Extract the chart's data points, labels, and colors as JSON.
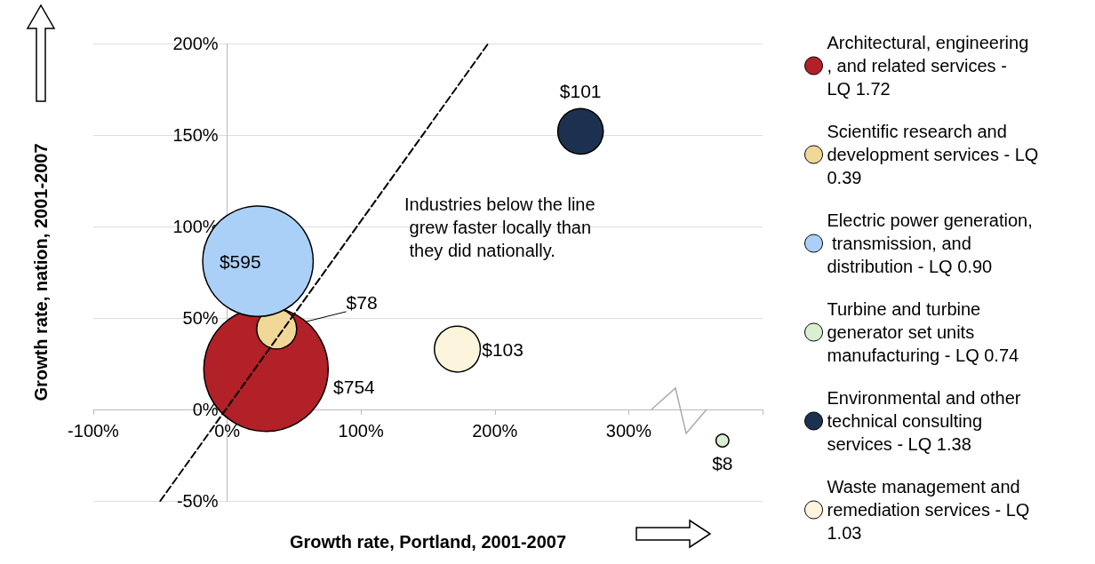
{
  "chart_data": {
    "type": "bubble",
    "xlabel": "Growth rate, Portland, 2001-2007",
    "ylabel": "Growth rate, nation, 2001-2007",
    "annotations": [
      "Industries below the line grew faster locally than they did nationally."
    ],
    "xlim": [
      -100,
      400
    ],
    "xticks": [
      {
        "value": -100,
        "label": "-100%"
      },
      {
        "value": 0,
        "label": "0%"
      },
      {
        "value": 100,
        "label": "100%"
      },
      {
        "value": 200,
        "label": "200%"
      },
      {
        "value": 300,
        "label": "300%"
      },
      {
        "value": 400,
        "label": null
      }
    ],
    "ylim": [
      -50,
      200
    ],
    "yticks": [
      {
        "value": -50,
        "label": "-50%"
      },
      {
        "value": 0,
        "label": "0%"
      },
      {
        "value": 50,
        "label": "50%"
      },
      {
        "value": 100,
        "label": "100%"
      },
      {
        "value": 150,
        "label": "150%"
      },
      {
        "value": 200,
        "label": "200%"
      }
    ],
    "grid": "y",
    "legend": "right",
    "series": [
      {
        "name": "Architectural, engineering, and related services - LQ 1.72",
        "color": "#b22028",
        "x": [
          29
        ],
        "values": [
          22
        ],
        "sizes": [
          754
        ],
        "value_labels": [
          "$754"
        ]
      },
      {
        "name": "Scientific research and development services - LQ 0.39",
        "color": "#f0d898",
        "x": [
          37
        ],
        "values": [
          44
        ],
        "sizes": [
          78
        ],
        "value_labels": [
          "$78"
        ]
      },
      {
        "name": "Electric power generation, transmission, and distribution - LQ 0.90",
        "color": "#aad0f8",
        "x": [
          23
        ],
        "values": [
          81
        ],
        "sizes": [
          595
        ],
        "value_labels": [
          "$595"
        ]
      },
      {
        "name": "Turbine and turbine generator set units manufacturing - LQ 0.74",
        "color": "#d8f0d0",
        "x": [
          370
        ],
        "values": [
          -17
        ],
        "sizes": [
          8
        ],
        "value_labels": [
          "$8"
        ]
      },
      {
        "name": "Environmental and other technical consulting services - LQ 1.38",
        "color": "#1c3150",
        "x": [
          264
        ],
        "values": [
          152
        ],
        "sizes": [
          101
        ],
        "value_labels": [
          "$101"
        ]
      },
      {
        "name": "Waste management and remediation services - LQ 1.03",
        "color": "#fcf4dc",
        "x": [
          172
        ],
        "values": [
          33
        ],
        "sizes": [
          103
        ],
        "value_labels": [
          "$103"
        ]
      },
      {
        "type": "line",
        "color": "#000000",
        "x": [
          -50,
          195
        ],
        "values": [
          -50,
          200
        ],
        "line_style": "dashed",
        "marker": "none"
      }
    ]
  }
}
